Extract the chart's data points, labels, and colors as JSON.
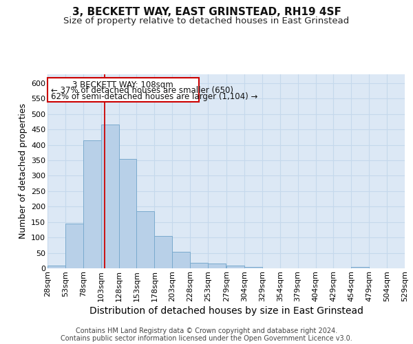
{
  "title": "3, BECKETT WAY, EAST GRINSTEAD, RH19 4SF",
  "subtitle": "Size of property relative to detached houses in East Grinstead",
  "xlabel": "Distribution of detached houses by size in East Grinstead",
  "ylabel": "Number of detached properties",
  "footer1": "Contains HM Land Registry data © Crown copyright and database right 2024.",
  "footer2": "Contains public sector information licensed under the Open Government Licence v3.0.",
  "annotation_title": "3 BECKETT WAY: 108sqm",
  "annotation_line1": "← 37% of detached houses are smaller (650)",
  "annotation_line2": "62% of semi-detached houses are larger (1,104) →",
  "property_size": 108,
  "bin_edges": [
    28,
    53,
    78,
    103,
    128,
    153,
    178,
    203,
    228,
    253,
    279,
    304,
    329,
    354,
    379,
    404,
    429,
    454,
    479,
    504,
    529
  ],
  "bar_heights": [
    10,
    145,
    415,
    465,
    355,
    185,
    105,
    53,
    18,
    15,
    10,
    4,
    0,
    0,
    0,
    0,
    0,
    5,
    0,
    0
  ],
  "bar_color": "#b8d0e8",
  "bar_edge_color": "#7aaace",
  "vline_color": "#cc0000",
  "ylim": [
    0,
    630
  ],
  "yticks": [
    0,
    50,
    100,
    150,
    200,
    250,
    300,
    350,
    400,
    450,
    500,
    550,
    600
  ],
  "grid_color": "#c5d8ec",
  "bg_color": "#dce8f5",
  "title_fontsize": 11,
  "subtitle_fontsize": 9.5,
  "xlabel_fontsize": 10,
  "ylabel_fontsize": 9,
  "tick_fontsize": 8,
  "footer_fontsize": 7
}
